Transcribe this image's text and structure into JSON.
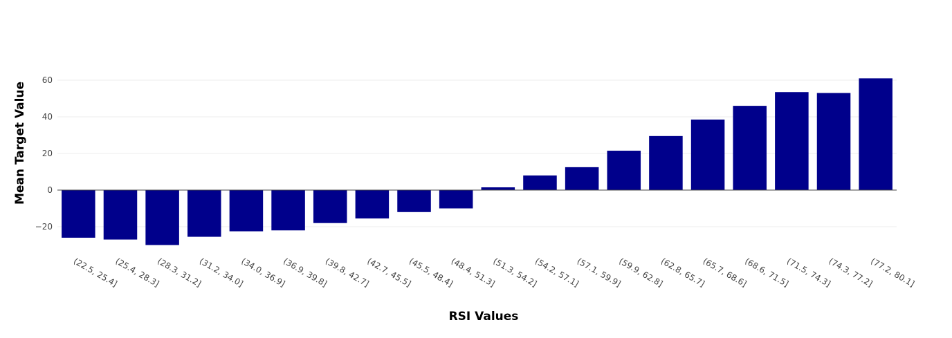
{
  "chart_data": {
    "type": "bar",
    "title": "",
    "xlabel": "RSI Values",
    "ylabel": "Mean Target Value",
    "categories": [
      "(22.5, 25.4]",
      "(25.4, 28.3]",
      "(28.3, 31.2]",
      "(31.2, 34.0]",
      "(34.0, 36.9]",
      "(36.9, 39.8]",
      "(39.8, 42.7]",
      "(42.7, 45.5]",
      "(45.5, 48.4]",
      "(48.4, 51.3]",
      "(51.3, 54.2]",
      "(54.2, 57.1]",
      "(57.1, 59.9]",
      "(59.9, 62.8]",
      "(62.8, 65.7]",
      "(65.7, 68.6]",
      "(68.6, 71.5]",
      "(71.5, 74.3]",
      "(74.3, 77.2]",
      "(77.2, 80.1]"
    ],
    "values": [
      -26,
      -27,
      -30,
      -25.5,
      -22.5,
      -22,
      -18,
      -15.5,
      -12,
      -10,
      1.5,
      8,
      12.5,
      21.5,
      29.5,
      38.5,
      46,
      53.5,
      53,
      61
    ],
    "ylim": [
      -34,
      62
    ],
    "yticks": [
      -20,
      0,
      20,
      40,
      60
    ],
    "ytick_labels": [
      "−20",
      "0",
      "20",
      "40",
      "60"
    ],
    "grid": true,
    "bar_color": "#00008b"
  }
}
